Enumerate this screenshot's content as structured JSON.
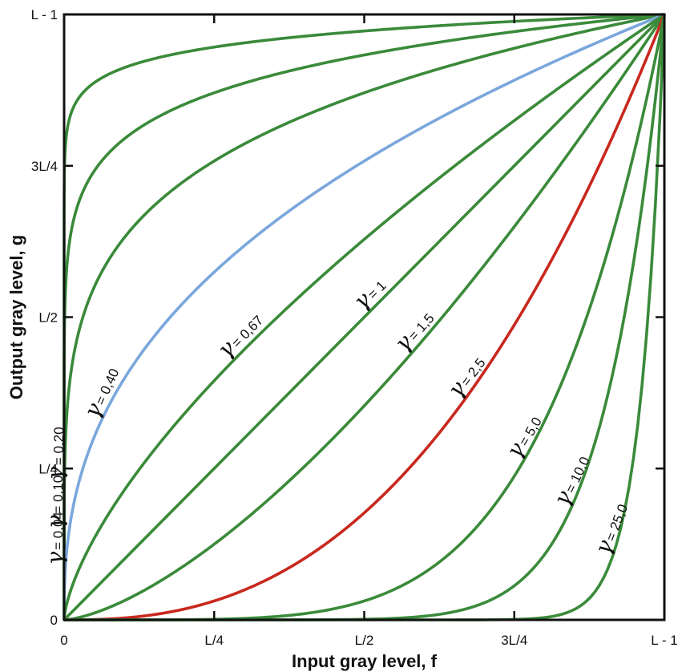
{
  "chart_data": {
    "type": "line",
    "title": "",
    "xlabel": "Input gray level, f",
    "ylabel": "Output gray level, g",
    "xlim": [
      0,
      1
    ],
    "ylim": [
      0,
      1
    ],
    "x_ticks": [
      {
        "value": 0,
        "label": "0"
      },
      {
        "value": 0.25,
        "label": "L/4"
      },
      {
        "value": 0.5,
        "label": "L/2"
      },
      {
        "value": 0.75,
        "label": "3L/4"
      },
      {
        "value": 1,
        "label": "L - 1"
      }
    ],
    "y_ticks": [
      {
        "value": 0,
        "label": "0"
      },
      {
        "value": 0.25,
        "label": "L/4"
      },
      {
        "value": 0.5,
        "label": "L/2"
      },
      {
        "value": 0.75,
        "label": "3L/4"
      },
      {
        "value": 1,
        "label": "L - 1"
      }
    ],
    "function": "g = f^gamma",
    "grid": false,
    "gamma_symbol": "γ",
    "series": [
      {
        "gamma": 0.04,
        "label": "= 0,04",
        "color": "#3a8a3a"
      },
      {
        "gamma": 0.1,
        "label": "= 0,10",
        "color": "#3a8a3a"
      },
      {
        "gamma": 0.2,
        "label": "= 0,20",
        "color": "#3a8a3a"
      },
      {
        "gamma": 0.4,
        "label": "= 0,40",
        "color": "#7aa7dc"
      },
      {
        "gamma": 0.67,
        "label": "= 0,67",
        "color": "#3a8a3a"
      },
      {
        "gamma": 1,
        "label": "= 1",
        "color": "#3a8a3a"
      },
      {
        "gamma": 1.5,
        "label": "= 1,5",
        "color": "#3a8a3a"
      },
      {
        "gamma": 2.5,
        "label": "= 2,5",
        "color": "#c8281e"
      },
      {
        "gamma": 5.0,
        "label": "= 5,0",
        "color": "#3a8a3a"
      },
      {
        "gamma": 10.0,
        "label": "= 10,0",
        "color": "#3a8a3a"
      },
      {
        "gamma": 25.0,
        "label": "= 25,0",
        "color": "#3a8a3a"
      }
    ]
  }
}
